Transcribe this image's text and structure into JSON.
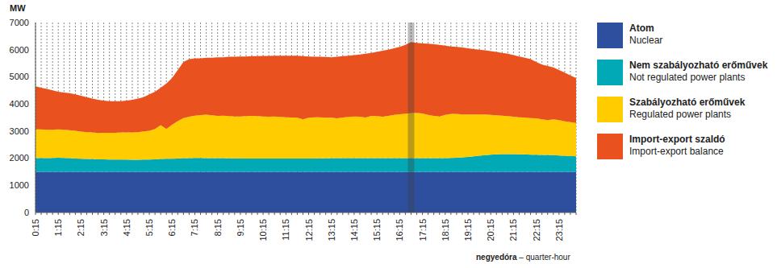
{
  "chart_data": {
    "type": "area",
    "stacked": true,
    "grid": true,
    "legend": "right",
    "y_label": "MW",
    "x_label": "negyedóra – quarter-hour",
    "ylim": [
      0,
      7000
    ],
    "yticks": [
      0,
      1000,
      2000,
      3000,
      4000,
      5000,
      6000,
      7000
    ],
    "categories": [
      "0:15",
      null,
      null,
      null,
      "1:15",
      null,
      null,
      null,
      "2:15",
      null,
      null,
      null,
      "3:15",
      null,
      null,
      null,
      "4:15",
      null,
      null,
      null,
      "5:15",
      null,
      null,
      null,
      "6:15",
      null,
      null,
      null,
      "7:15",
      null,
      null,
      null,
      "8:15",
      null,
      null,
      null,
      "9:15",
      null,
      null,
      null,
      "10:15",
      null,
      null,
      null,
      "11:15",
      null,
      null,
      null,
      "12:15",
      null,
      null,
      null,
      "13:15",
      null,
      null,
      null,
      "14:15",
      null,
      null,
      null,
      "15:15",
      null,
      null,
      null,
      "16:15",
      null,
      null,
      null,
      "17:15",
      null,
      null,
      null,
      "18:15",
      null,
      null,
      null,
      "19:15",
      null,
      null,
      null,
      "20:15",
      null,
      null,
      null,
      "21:15",
      null,
      null,
      null,
      "22:15",
      null,
      null,
      null,
      "23:15",
      null,
      null,
      null
    ],
    "series": [
      {
        "name": "Atom",
        "name_en": "Nuclear",
        "color": "#2e4f9e",
        "values": [
          1500,
          1500,
          1500,
          1500,
          1500,
          1500,
          1500,
          1500,
          1500,
          1500,
          1500,
          1500,
          1500,
          1500,
          1500,
          1500,
          1500,
          1500,
          1500,
          1500,
          1500,
          1500,
          1500,
          1500,
          1500,
          1500,
          1500,
          1500,
          1500,
          1500,
          1500,
          1500,
          1500,
          1500,
          1500,
          1500,
          1500,
          1500,
          1500,
          1500,
          1500,
          1500,
          1500,
          1500,
          1500,
          1500,
          1500,
          1500,
          1500,
          1500,
          1500,
          1500,
          1500,
          1500,
          1500,
          1500,
          1500,
          1500,
          1500,
          1500,
          1500,
          1500,
          1500,
          1500,
          1500,
          1500,
          1500,
          1500,
          1500,
          1500,
          1500,
          1500,
          1500,
          1500,
          1500,
          1500,
          1500,
          1500,
          1500,
          1500,
          1500,
          1500,
          1500,
          1500,
          1500,
          1500,
          1500,
          1500,
          1500,
          1500,
          1500,
          1500,
          1500,
          1500,
          1500,
          1500
        ]
      },
      {
        "name": "Nem szabályozható erőművek",
        "name_en": "Not regulated power plants",
        "color": "#00a9b5",
        "values": [
          500,
          510,
          500,
          510,
          520,
          510,
          500,
          490,
          480,
          470,
          470,
          460,
          460,
          450,
          450,
          450,
          450,
          440,
          440,
          450,
          450,
          460,
          470,
          480,
          480,
          490,
          500,
          500,
          510,
          510,
          505,
          500,
          500,
          500,
          495,
          495,
          490,
          490,
          490,
          490,
          490,
          490,
          490,
          490,
          490,
          490,
          490,
          490,
          490,
          490,
          495,
          495,
          500,
          500,
          500,
          500,
          500,
          500,
          500,
          500,
          500,
          500,
          500,
          500,
          500,
          500,
          500,
          500,
          500,
          500,
          500,
          500,
          500,
          510,
          520,
          530,
          550,
          570,
          590,
          610,
          630,
          640,
          650,
          650,
          650,
          640,
          640,
          630,
          630,
          620,
          620,
          610,
          600,
          590,
          580,
          570
        ]
      },
      {
        "name": "Szabályozható erőművek",
        "name_en": "Regulated power plants",
        "color": "#ffcc00",
        "values": [
          1060,
          1050,
          1050,
          1040,
          1040,
          1040,
          1030,
          1020,
          1000,
          990,
          980,
          970,
          980,
          990,
          990,
          1000,
          1000,
          1010,
          1020,
          1040,
          1060,
          1120,
          1250,
          1100,
          1250,
          1380,
          1480,
          1530,
          1560,
          1580,
          1600,
          1580,
          1560,
          1570,
          1560,
          1540,
          1550,
          1560,
          1570,
          1560,
          1550,
          1540,
          1550,
          1530,
          1520,
          1510,
          1500,
          1440,
          1500,
          1520,
          1510,
          1500,
          1490,
          1470,
          1500,
          1520,
          1540,
          1530,
          1500,
          1560,
          1550,
          1530,
          1560,
          1600,
          1620,
          1640,
          1660,
          1670,
          1650,
          1600,
          1560,
          1540,
          1600,
          1620,
          1610,
          1580,
          1560,
          1540,
          1520,
          1500,
          1470,
          1440,
          1420,
          1400,
          1380,
          1370,
          1360,
          1350,
          1340,
          1310,
          1280,
          1320,
          1300,
          1270,
          1250,
          1230
        ]
      },
      {
        "name": "Import-export szaldó",
        "name_en": "Import-export balance",
        "color": "#e9521e",
        "values": [
          1590,
          1540,
          1500,
          1450,
          1390,
          1370,
          1370,
          1340,
          1320,
          1290,
          1250,
          1220,
          1180,
          1160,
          1160,
          1150,
          1170,
          1200,
          1240,
          1260,
          1340,
          1370,
          1380,
          1670,
          1720,
          1880,
          2070,
          2120,
          2110,
          2090,
          2095,
          2120,
          2160,
          2150,
          2185,
          2205,
          2210,
          2200,
          2200,
          2210,
          2230,
          2240,
          2240,
          2260,
          2270,
          2280,
          2290,
          2330,
          2260,
          2230,
          2235,
          2235,
          2230,
          2270,
          2260,
          2260,
          2260,
          2290,
          2350,
          2320,
          2370,
          2430,
          2440,
          2450,
          2480,
          2540,
          2620,
          2580,
          2580,
          2620,
          2640,
          2640,
          2550,
          2490,
          2470,
          2470,
          2440,
          2410,
          2390,
          2370,
          2350,
          2340,
          2310,
          2300,
          2270,
          2240,
          2200,
          2170,
          2080,
          2020,
          2000,
          1920,
          1850,
          1790,
          1720,
          1650
        ]
      }
    ]
  }
}
